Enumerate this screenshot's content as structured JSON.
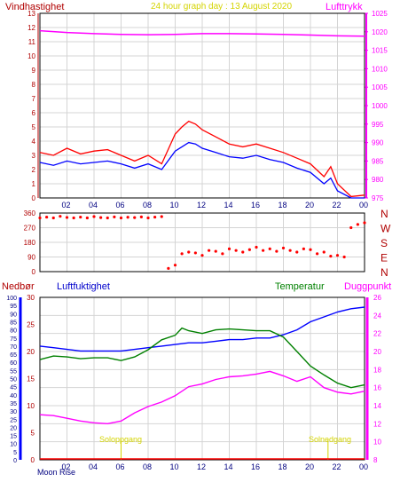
{
  "header": {
    "left_title": "Vindhastighet",
    "center_title": "24 hour graph day : 13 August 2020",
    "right_title": "Lufttrykk"
  },
  "colors": {
    "bg": "#ffffff",
    "frame": "#000000",
    "grid": "#d4d4d4",
    "red": "#ff0000",
    "blue": "#0000ff",
    "green": "#008000",
    "magenta": "#ff00ff",
    "yellow": "#d4d400",
    "dark_red": "#b00000"
  },
  "chart_data": [
    {
      "id": "wind-pressure",
      "type": "line",
      "title": "24 hour graph day : 13 August 2020",
      "x_ticks": [
        "02",
        "04",
        "06",
        "08",
        "10",
        "12",
        "14",
        "16",
        "18",
        "20",
        "22",
        "00"
      ],
      "left_axis": {
        "label": "Vindhastighet",
        "min": 0,
        "max": 13,
        "ticks": [
          0,
          1,
          2,
          3,
          4,
          5,
          6,
          7,
          8,
          9,
          10,
          11,
          12,
          13
        ]
      },
      "right_axis": {
        "label": "Lufttrykk",
        "min": 975,
        "max": 1025,
        "ticks": [
          975,
          980,
          985,
          990,
          995,
          1000,
          1005,
          1010,
          1015,
          1020,
          1025
        ]
      },
      "series": [
        {
          "axis": "left",
          "color": "#ff0000",
          "x": [
            0,
            1,
            2,
            3,
            4,
            5,
            6,
            7,
            8,
            9,
            10,
            10.5,
            11,
            11.5,
            12,
            13,
            14,
            15,
            16,
            17,
            18,
            19,
            20,
            21,
            21.5,
            22,
            23,
            24
          ],
          "values": [
            3.2,
            3.0,
            3.5,
            3.1,
            3.3,
            3.4,
            3.0,
            2.6,
            3.0,
            2.4,
            4.5,
            5.0,
            5.4,
            5.2,
            4.8,
            4.3,
            3.8,
            3.6,
            3.8,
            3.5,
            3.2,
            2.8,
            2.4,
            1.5,
            2.2,
            1.0,
            0.1,
            0.2
          ]
        },
        {
          "axis": "left",
          "color": "#0000ff",
          "x": [
            0,
            1,
            2,
            3,
            4,
            5,
            6,
            7,
            8,
            9,
            10,
            10.5,
            11,
            11.5,
            12,
            13,
            14,
            15,
            16,
            17,
            18,
            19,
            20,
            21,
            21.5,
            22,
            23,
            24
          ],
          "values": [
            2.5,
            2.3,
            2.6,
            2.4,
            2.5,
            2.6,
            2.4,
            2.1,
            2.4,
            2.0,
            3.3,
            3.6,
            3.9,
            3.8,
            3.5,
            3.2,
            2.9,
            2.8,
            3.0,
            2.7,
            2.5,
            2.1,
            1.8,
            1.0,
            1.4,
            0.5,
            0.0,
            0.0
          ]
        },
        {
          "axis": "right",
          "color": "#ff00ff",
          "x": [
            0,
            2,
            4,
            6,
            8,
            10,
            12,
            14,
            16,
            18,
            20,
            22,
            24
          ],
          "values": [
            1020.3,
            1019.8,
            1019.5,
            1019.3,
            1019.2,
            1019.3,
            1019.5,
            1019.5,
            1019.4,
            1019.3,
            1019.1,
            1018.9,
            1018.8
          ]
        }
      ]
    },
    {
      "id": "wind-direction",
      "type": "scatter",
      "y_ticks": [
        0,
        90,
        180,
        270,
        360
      ],
      "ylim": [
        0,
        360
      ],
      "compass_labels": [
        "N",
        "W",
        "S",
        "E",
        "N"
      ],
      "series": [
        {
          "name": "",
          "color": "#ff0000",
          "x": [
            0,
            0.5,
            1,
            1.5,
            2,
            2.5,
            3,
            3.5,
            4,
            4.5,
            5,
            5.5,
            6,
            6.5,
            7,
            7.5,
            8,
            8.5,
            9,
            9.5,
            10,
            10.5,
            11,
            11.5,
            12,
            12.5,
            13,
            13.5,
            14,
            14.5,
            15,
            15.5,
            16,
            16.5,
            17,
            17.5,
            18,
            18.5,
            19,
            19.5,
            20,
            20.5,
            21,
            21.5,
            22,
            22.5,
            23,
            23.5,
            24
          ],
          "values": [
            330,
            335,
            330,
            340,
            333,
            330,
            335,
            330,
            338,
            332,
            330,
            336,
            330,
            334,
            332,
            336,
            330,
            335,
            338,
            20,
            40,
            110,
            120,
            115,
            100,
            130,
            125,
            110,
            140,
            130,
            120,
            135,
            150,
            130,
            140,
            125,
            145,
            130,
            120,
            140,
            135,
            110,
            120,
            95,
            100,
            90,
            270,
            290,
            300
          ]
        }
      ]
    },
    {
      "id": "humidity-temp",
      "type": "line",
      "title": "",
      "x_ticks": [
        "02",
        "04",
        "06",
        "08",
        "10",
        "12",
        "14",
        "16",
        "18",
        "20",
        "22",
        "00"
      ],
      "axes_labels": {
        "nedbor": "Nedbør",
        "luftfuktighet": "Luftfuktighet",
        "temperatur": "Temperatur",
        "duggpunkt": "Duggpunkt"
      },
      "left_axis_humidity": {
        "min": 0,
        "max": 100,
        "ticks": [
          0,
          5,
          10,
          15,
          20,
          25,
          30,
          35,
          40,
          45,
          50,
          55,
          60,
          65,
          70,
          75,
          80,
          85,
          90,
          95,
          100
        ]
      },
      "left_axis_rain": {
        "min": 0,
        "max": 30,
        "ticks": [
          0,
          5,
          10,
          15,
          20,
          25,
          30
        ]
      },
      "right_axis": {
        "min": 8,
        "max": 26,
        "ticks": [
          8,
          10,
          12,
          14,
          16,
          18,
          20,
          22,
          24,
          26
        ]
      },
      "annotations": [
        "Soloppgang",
        "Solnedgang",
        "Moon Rise"
      ],
      "series": [
        {
          "name": "Luftfuktighet",
          "axis": "humidity",
          "color": "#0000ff",
          "x": [
            0,
            1,
            2,
            3,
            4,
            5,
            6,
            7,
            8,
            9,
            10,
            11,
            12,
            13,
            14,
            15,
            16,
            17,
            18,
            19,
            20,
            21,
            22,
            23,
            24
          ],
          "values": [
            70,
            69,
            68,
            67,
            67,
            67,
            67,
            68,
            69,
            70,
            71,
            72,
            72,
            73,
            74,
            74,
            75,
            75,
            77,
            80,
            85,
            88,
            91,
            93,
            94
          ]
        },
        {
          "name": "Temperatur",
          "axis": "right",
          "color": "#008000",
          "x": [
            0,
            1,
            2,
            3,
            4,
            5,
            6,
            7,
            8,
            9,
            10,
            10.5,
            11,
            12,
            13,
            14,
            15,
            16,
            17,
            18,
            19,
            20,
            21,
            22,
            23,
            24
          ],
          "values": [
            19.1,
            19.5,
            19.4,
            19.2,
            19.3,
            19.3,
            19.0,
            19.4,
            20.2,
            21.3,
            21.8,
            22.6,
            22.3,
            22.0,
            22.4,
            22.5,
            22.4,
            22.3,
            22.3,
            21.6,
            20.0,
            18.4,
            17.4,
            16.5,
            16.0,
            16.3
          ]
        },
        {
          "name": "Duggpunkt",
          "axis": "right",
          "color": "#ff00ff",
          "x": [
            0,
            1,
            2,
            3,
            4,
            5,
            6,
            7,
            8,
            9,
            10,
            11,
            12,
            13,
            14,
            15,
            16,
            17,
            18,
            19,
            20,
            21,
            22,
            23,
            24
          ],
          "values": [
            13.0,
            12.9,
            12.6,
            12.3,
            12.1,
            12.0,
            12.3,
            13.2,
            13.9,
            14.4,
            15.1,
            16.1,
            16.4,
            16.9,
            17.2,
            17.3,
            17.5,
            17.8,
            17.3,
            16.7,
            17.2,
            16.0,
            15.5,
            15.3,
            15.6
          ]
        }
      ]
    }
  ],
  "footer": {
    "moon_rise": "Moon Rise",
    "solopp": "Soloppgang",
    "solned": "Solnedgang"
  }
}
